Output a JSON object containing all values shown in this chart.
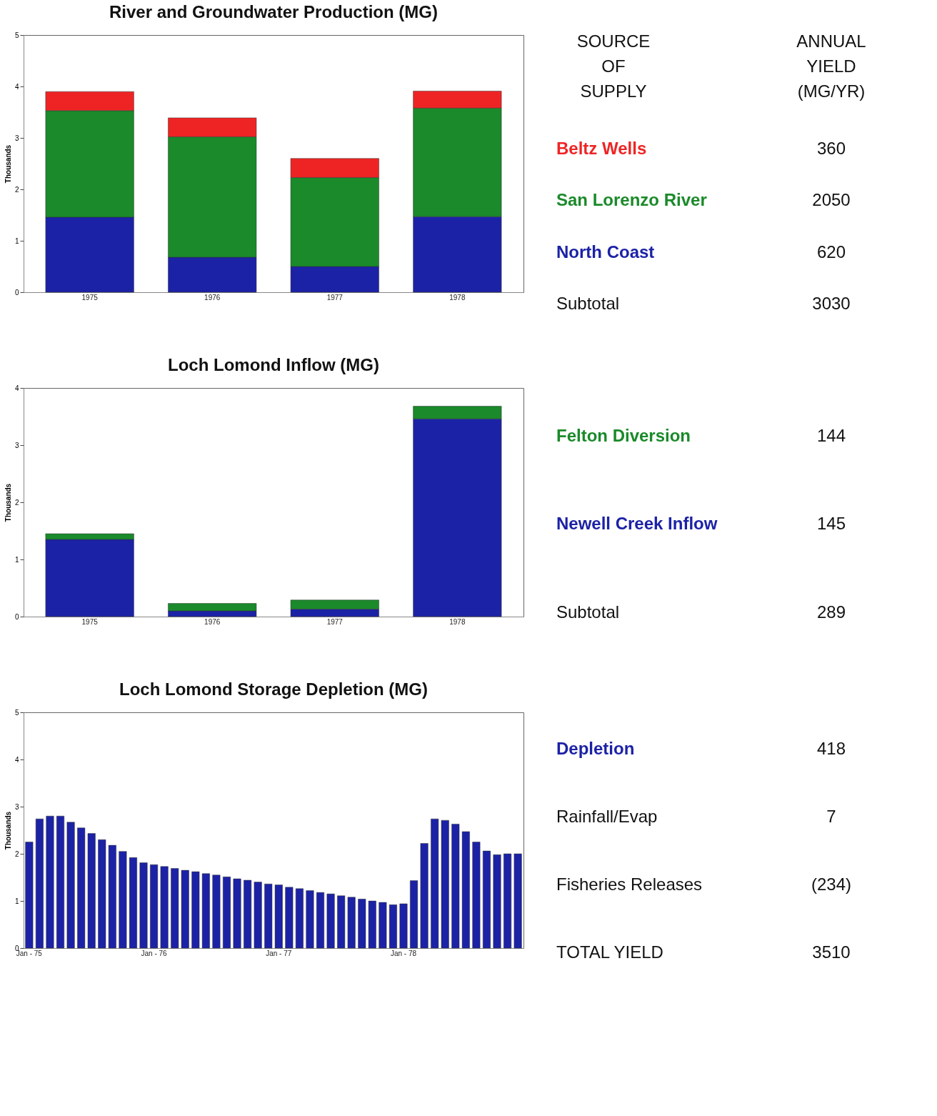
{
  "chart_data": [
    {
      "type": "other",
      "annotations": [
        "SOURCE OF SUPPLY",
        "ANNUAL YIELD (MG/YR)"
      ]
    },
    {
      "type": "bar",
      "title": "River and Groundwater Production (MG)",
      "ylabel": "Thousands",
      "categories": [
        "1975",
        "1976",
        "1977",
        "1978"
      ],
      "stacked": true,
      "ylim": [
        0,
        5
      ],
      "yticks": [
        0,
        1,
        2,
        3,
        4,
        5
      ],
      "legend": "right",
      "series": [
        {
          "name": "North Coast",
          "color": "#1c22a6",
          "values": [
            1.46,
            0.68,
            0.5,
            1.47
          ]
        },
        {
          "name": "San Lorenzo River",
          "color": "#1a8a2a",
          "values": [
            2.07,
            2.34,
            1.73,
            2.11
          ]
        },
        {
          "name": "Beltz Wells",
          "color": "#ee2424",
          "values": [
            0.37,
            0.37,
            0.37,
            0.33
          ]
        }
      ],
      "annotations": [
        "360",
        "2050",
        "620",
        "Subtotal",
        "3030"
      ]
    },
    {
      "type": "bar",
      "title": "Loch Lomond Inflow (MG)",
      "ylabel": "Thousands",
      "categories": [
        "1975",
        "1976",
        "1977",
        "1978"
      ],
      "stacked": true,
      "ylim": [
        0,
        4
      ],
      "yticks": [
        0,
        1,
        2,
        3,
        4
      ],
      "legend": "right",
      "series": [
        {
          "name": "Newell Creek Inflow",
          "color": "#1c22a6",
          "values": [
            1.35,
            0.1,
            0.13,
            3.46
          ]
        },
        {
          "name": "Felton Diversion",
          "color": "#1a8a2a",
          "values": [
            0.1,
            0.13,
            0.16,
            0.22
          ]
        }
      ],
      "annotations": [
        "144",
        "145",
        "Subtotal",
        "289"
      ]
    },
    {
      "type": "bar",
      "title": "Loch Lomond Storage Depletion (MG)",
      "ylabel": "Thousands",
      "categories": [
        "Jan - 75",
        null,
        null,
        null,
        null,
        null,
        null,
        null,
        null,
        null,
        null,
        null,
        "Jan - 76",
        null,
        null,
        null,
        null,
        null,
        null,
        null,
        null,
        null,
        null,
        null,
        "Jan - 77",
        null,
        null,
        null,
        null,
        null,
        null,
        null,
        null,
        null,
        null,
        null,
        "Jan - 78",
        null,
        null,
        null,
        null,
        null,
        null,
        null,
        null,
        null,
        null,
        null
      ],
      "ylim": [
        0,
        5
      ],
      "yticks": [
        0,
        1,
        2,
        3,
        4,
        5
      ],
      "legend": "right",
      "series": [
        {
          "name": "Depletion",
          "color": "#1c22a6",
          "values": [
            2.25,
            2.74,
            2.8,
            2.8,
            2.67,
            2.55,
            2.43,
            2.3,
            2.18,
            2.05,
            1.92,
            1.81,
            1.77,
            1.73,
            1.69,
            1.65,
            1.62,
            1.58,
            1.55,
            1.51,
            1.47,
            1.44,
            1.4,
            1.36,
            1.34,
            1.29,
            1.26,
            1.22,
            1.18,
            1.15,
            1.11,
            1.08,
            1.04,
            1.0,
            0.97,
            0.92,
            0.94,
            1.43,
            2.22,
            2.74,
            2.71,
            2.63,
            2.47,
            2.25,
            2.06,
            1.98,
            2.0,
            2.0
          ]
        }
      ],
      "annotations": [
        "418",
        "Rainfall/Evap",
        "7",
        "Fisheries Releases",
        "(234)",
        "TOTAL YIELD",
        "3510"
      ]
    }
  ]
}
